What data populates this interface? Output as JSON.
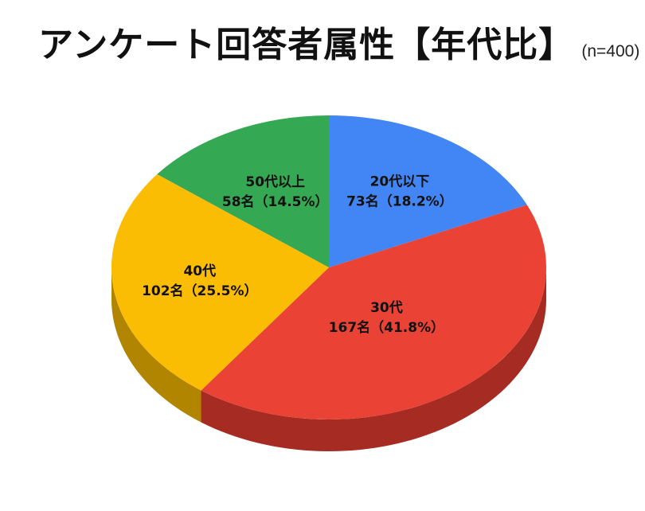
{
  "title": "アンケート回答者属性【年代比】",
  "subtitle": "(n=400)",
  "chart_data": {
    "type": "pie",
    "style": "3d",
    "categories": [
      "20代以下",
      "30代",
      "40代",
      "50代以上"
    ],
    "values": [
      73,
      167,
      102,
      58
    ],
    "value_labels": [
      "73名（18.2%）",
      "167名（41.8%）",
      "102名（25.5%）",
      "58名（14.5%）"
    ],
    "percentages": [
      18.2,
      41.8,
      25.5,
      14.5
    ],
    "colors": [
      "#4285F4",
      "#EA4335",
      "#FBBC04",
      "#34A853"
    ],
    "side_colors": [
      "#2F5FAF",
      "#A52B23",
      "#B18500",
      "#237539"
    ],
    "start": "12 o'clock",
    "direction": "clockwise"
  }
}
